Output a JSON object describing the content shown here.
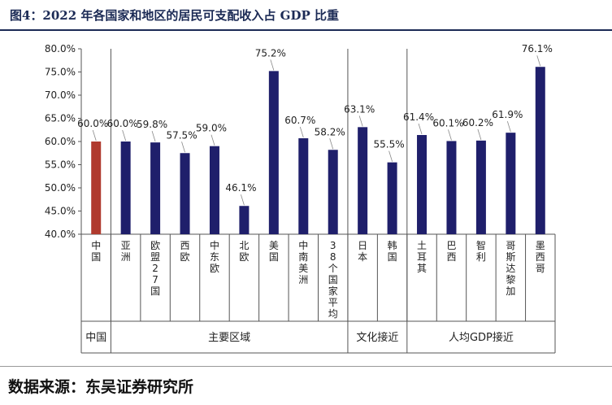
{
  "header": {
    "title": "图4：2022 年各国家和地区的居民可支配收入占 GDP 比重"
  },
  "footer": {
    "source": "数据来源：东吴证券研究所"
  },
  "chart_data": {
    "type": "bar",
    "title": "图4：2022 年各国家和地区的居民可支配收入占 GDP 比重",
    "xlabel": "",
    "ylabel": "",
    "ylim": [
      40,
      80
    ],
    "yticks": [
      "40.0%",
      "45.0%",
      "50.0%",
      "55.0%",
      "60.0%",
      "65.0%",
      "70.0%",
      "75.0%",
      "80.0%"
    ],
    "categories": [
      "中国",
      "亚洲",
      "欧盟27国",
      "西欧",
      "中东欧",
      "北欧",
      "美国",
      "中南美洲",
      "38个国家平均",
      "日本",
      "韩国",
      "土耳其",
      "巴西",
      "智利",
      "哥斯达黎加",
      "墨西哥"
    ],
    "values": [
      60.0,
      60.0,
      59.8,
      57.5,
      59.0,
      46.1,
      75.2,
      60.7,
      58.2,
      63.1,
      55.5,
      61.4,
      60.1,
      60.2,
      61.9,
      76.1
    ],
    "data_labels": [
      "60.0%",
      "60.0%",
      "59.8%",
      "57.5%",
      "59.0%",
      "46.1%",
      "75.2%",
      "60.7%",
      "58.2%",
      "63.1%",
      "55.5%",
      "61.4%",
      "60.1%",
      "60.2%",
      "61.9%",
      "76.1%"
    ],
    "groups": [
      {
        "label": "中国",
        "count": 1
      },
      {
        "label": "主要区域",
        "count": 8
      },
      {
        "label": "文化接近",
        "count": 2
      },
      {
        "label": "人均GDP接近",
        "count": 5
      }
    ],
    "colors": {
      "highlight": "#b03a2e",
      "bar": "#1f1f6b"
    },
    "highlight_index": 0,
    "grid": false,
    "legend": "none"
  }
}
